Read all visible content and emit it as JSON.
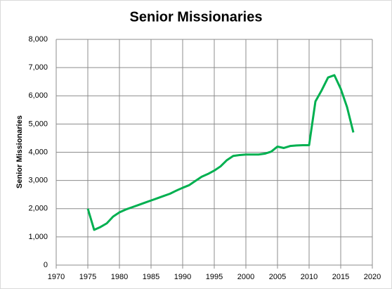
{
  "chart_data": {
    "type": "line",
    "title": "Senior Missionaries",
    "y_label": "Senior Missionaries",
    "x": [
      1975,
      1976,
      1977,
      1978,
      1979,
      1980,
      1981,
      1982,
      1983,
      1984,
      1985,
      1986,
      1987,
      1988,
      1989,
      1990,
      1991,
      1992,
      1993,
      1994,
      1995,
      1996,
      1997,
      1998,
      1999,
      2000,
      2001,
      2002,
      2003,
      2004,
      2005,
      2006,
      2007,
      2008,
      2009,
      2010,
      2011,
      2012,
      2013,
      2014,
      2015,
      2016,
      2017
    ],
    "series": [
      {
        "name": "Senior Missionaries",
        "color": "#00b050",
        "values": [
          2000,
          1250,
          1350,
          1480,
          1720,
          1870,
          1970,
          2050,
          2130,
          2210,
          2290,
          2370,
          2450,
          2530,
          2640,
          2740,
          2830,
          2980,
          3130,
          3230,
          3350,
          3500,
          3720,
          3870,
          3900,
          3920,
          3920,
          3920,
          3950,
          4020,
          4200,
          4150,
          4220,
          4240,
          4250,
          4250,
          5800,
          6200,
          6650,
          6730,
          6250,
          5600,
          4700
        ]
      }
    ],
    "xlim": [
      1970,
      2020
    ],
    "xticks": [
      1970,
      1975,
      1980,
      1985,
      1990,
      1995,
      2000,
      2005,
      2010,
      2015,
      2020
    ],
    "ylim": [
      0,
      8000
    ],
    "yticks": [
      0,
      {
        "value": 1000,
        "label": "1,000"
      },
      {
        "value": 2000,
        "label": "2,000"
      },
      {
        "value": 3000,
        "label": "3,000"
      },
      {
        "value": 4000,
        "label": "4,000"
      },
      {
        "value": 5000,
        "label": "5,000"
      },
      {
        "value": 6000,
        "label": "6,000"
      },
      {
        "value": 7000,
        "label": "7,000"
      },
      {
        "value": 8000,
        "label": "8,000"
      }
    ],
    "grid": true
  }
}
